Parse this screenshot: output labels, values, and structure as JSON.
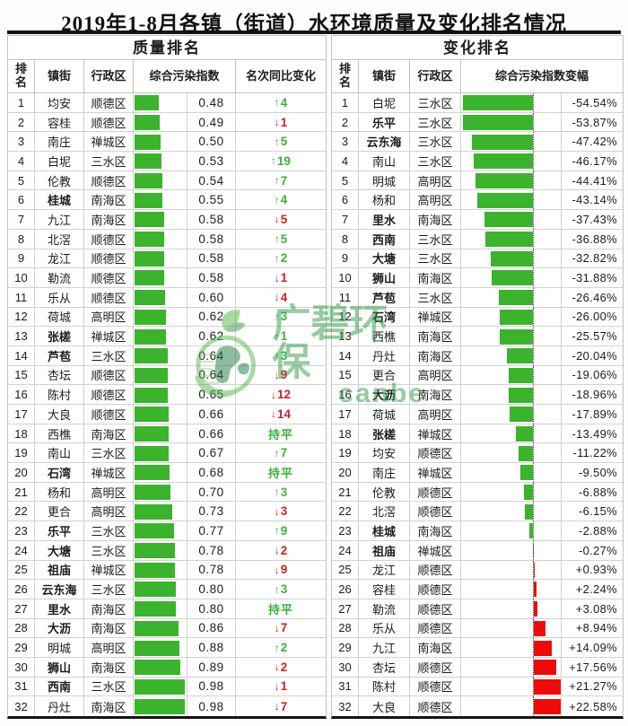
{
  "title": "2019年1-8月各镇（街道）水环境质量及变化排名情况",
  "watermark": {
    "brand": "广碧环保",
    "brand_en": "canbe"
  },
  "colors": {
    "bar_green": "#3cb32c",
    "bar_red": "#ed0b0b",
    "text_green": "#3faf3f",
    "text_red": "#cc2222"
  },
  "left_table": {
    "section_title": "质量排名",
    "columns": [
      "排名",
      "镇街",
      "行政区",
      "综合污染指数",
      "名次同比变化"
    ],
    "rows": [
      {
        "rank": "1",
        "town": "均安",
        "district": "顺德区",
        "bold": false,
        "index": "0.48",
        "change": {
          "dir": "up",
          "n": "4"
        }
      },
      {
        "rank": "2",
        "town": "容桂",
        "district": "顺德区",
        "bold": false,
        "index": "0.49",
        "change": {
          "dir": "down",
          "n": "1"
        }
      },
      {
        "rank": "3",
        "town": "南庄",
        "district": "禅城区",
        "bold": false,
        "index": "0.50",
        "change": {
          "dir": "up",
          "n": "5"
        }
      },
      {
        "rank": "4",
        "town": "白坭",
        "district": "三水区",
        "bold": false,
        "index": "0.53",
        "change": {
          "dir": "up",
          "n": "19"
        }
      },
      {
        "rank": "5",
        "town": "伦教",
        "district": "顺德区",
        "bold": false,
        "index": "0.54",
        "change": {
          "dir": "up",
          "n": "7"
        }
      },
      {
        "rank": "6",
        "town": "桂城",
        "district": "南海区",
        "bold": true,
        "index": "0.55",
        "change": {
          "dir": "up",
          "n": "4"
        }
      },
      {
        "rank": "7",
        "town": "九江",
        "district": "南海区",
        "bold": false,
        "index": "0.58",
        "change": {
          "dir": "down",
          "n": "5"
        }
      },
      {
        "rank": "8",
        "town": "北滘",
        "district": "顺德区",
        "bold": false,
        "index": "0.58",
        "change": {
          "dir": "up",
          "n": "5"
        }
      },
      {
        "rank": "9",
        "town": "龙江",
        "district": "顺德区",
        "bold": false,
        "index": "0.58",
        "change": {
          "dir": "up",
          "n": "2"
        }
      },
      {
        "rank": "10",
        "town": "勒流",
        "district": "顺德区",
        "bold": false,
        "index": "0.58",
        "change": {
          "dir": "down",
          "n": "1"
        }
      },
      {
        "rank": "11",
        "town": "乐从",
        "district": "顺德区",
        "bold": false,
        "index": "0.60",
        "change": {
          "dir": "down",
          "n": "4"
        }
      },
      {
        "rank": "12",
        "town": "荷城",
        "district": "高明区",
        "bold": false,
        "index": "0.62",
        "change": {
          "dir": "up",
          "n": "3"
        }
      },
      {
        "rank": "13",
        "town": "张槎",
        "district": "禅城区",
        "bold": true,
        "index": "0.62",
        "change": {
          "dir": "up",
          "n": "1"
        }
      },
      {
        "rank": "14",
        "town": "芦苞",
        "district": "三水区",
        "bold": true,
        "index": "0.64",
        "change": {
          "dir": "up",
          "n": "3"
        }
      },
      {
        "rank": "15",
        "town": "杏坛",
        "district": "顺德区",
        "bold": false,
        "index": "0.64",
        "change": {
          "dir": "down",
          "n": "9"
        }
      },
      {
        "rank": "16",
        "town": "陈村",
        "district": "顺德区",
        "bold": false,
        "index": "0.65",
        "change": {
          "dir": "down",
          "n": "12"
        }
      },
      {
        "rank": "17",
        "town": "大良",
        "district": "顺德区",
        "bold": false,
        "index": "0.66",
        "change": {
          "dir": "down",
          "n": "14"
        }
      },
      {
        "rank": "18",
        "town": "西樵",
        "district": "南海区",
        "bold": false,
        "index": "0.66",
        "change": {
          "dir": "flat",
          "n": "持平"
        }
      },
      {
        "rank": "19",
        "town": "南山",
        "district": "三水区",
        "bold": false,
        "index": "0.67",
        "change": {
          "dir": "up",
          "n": "7"
        }
      },
      {
        "rank": "20",
        "town": "石湾",
        "district": "禅城区",
        "bold": true,
        "index": "0.68",
        "change": {
          "dir": "flat",
          "n": "持平"
        }
      },
      {
        "rank": "21",
        "town": "杨和",
        "district": "高明区",
        "bold": false,
        "index": "0.70",
        "change": {
          "dir": "up",
          "n": "3"
        }
      },
      {
        "rank": "22",
        "town": "更合",
        "district": "高明区",
        "bold": false,
        "index": "0.73",
        "change": {
          "dir": "down",
          "n": "3"
        }
      },
      {
        "rank": "23",
        "town": "乐平",
        "district": "三水区",
        "bold": true,
        "index": "0.77",
        "change": {
          "dir": "up",
          "n": "9"
        }
      },
      {
        "rank": "24",
        "town": "大塘",
        "district": "三水区",
        "bold": true,
        "index": "0.78",
        "change": {
          "dir": "down",
          "n": "2"
        }
      },
      {
        "rank": "25",
        "town": "祖庙",
        "district": "禅城区",
        "bold": true,
        "index": "0.78",
        "change": {
          "dir": "down",
          "n": "9"
        }
      },
      {
        "rank": "26",
        "town": "云东海",
        "district": "三水区",
        "bold": true,
        "index": "0.80",
        "change": {
          "dir": "up",
          "n": "3"
        }
      },
      {
        "rank": "27",
        "town": "里水",
        "district": "南海区",
        "bold": true,
        "index": "0.80",
        "change": {
          "dir": "flat",
          "n": "持平"
        }
      },
      {
        "rank": "28",
        "town": "大沥",
        "district": "南海区",
        "bold": true,
        "index": "0.86",
        "change": {
          "dir": "down",
          "n": "7"
        }
      },
      {
        "rank": "29",
        "town": "明城",
        "district": "高明区",
        "bold": false,
        "index": "0.88",
        "change": {
          "dir": "up",
          "n": "2"
        }
      },
      {
        "rank": "30",
        "town": "狮山",
        "district": "南海区",
        "bold": true,
        "index": "0.89",
        "change": {
          "dir": "down",
          "n": "2"
        }
      },
      {
        "rank": "31",
        "town": "西南",
        "district": "三水区",
        "bold": true,
        "index": "0.98",
        "change": {
          "dir": "down",
          "n": "1"
        }
      },
      {
        "rank": "32",
        "town": "丹灶",
        "district": "南海区",
        "bold": false,
        "index": "0.98",
        "change": {
          "dir": "down",
          "n": "7"
        }
      }
    ]
  },
  "right_table": {
    "section_title": "变化排名",
    "columns": [
      "排名",
      "镇街",
      "行政区",
      "综合污染指数变幅"
    ],
    "rows": [
      {
        "rank": "1",
        "town": "白坭",
        "district": "三水区",
        "bold": false,
        "pct": -54.54,
        "display": "-54.54%"
      },
      {
        "rank": "2",
        "town": "乐平",
        "district": "三水区",
        "bold": true,
        "pct": -53.87,
        "display": "-53.87%"
      },
      {
        "rank": "3",
        "town": "云东海",
        "district": "三水区",
        "bold": true,
        "pct": -47.42,
        "display": "-47.42%"
      },
      {
        "rank": "4",
        "town": "南山",
        "district": "三水区",
        "bold": false,
        "pct": -46.17,
        "display": "-46.17%"
      },
      {
        "rank": "5",
        "town": "明城",
        "district": "高明区",
        "bold": false,
        "pct": -44.41,
        "display": "-44.41%"
      },
      {
        "rank": "6",
        "town": "杨和",
        "district": "高明区",
        "bold": false,
        "pct": -43.14,
        "display": "-43.14%"
      },
      {
        "rank": "7",
        "town": "里水",
        "district": "南海区",
        "bold": true,
        "pct": -37.43,
        "display": "-37.43%"
      },
      {
        "rank": "8",
        "town": "西南",
        "district": "三水区",
        "bold": true,
        "pct": -36.88,
        "display": "-36.88%"
      },
      {
        "rank": "9",
        "town": "大塘",
        "district": "三水区",
        "bold": true,
        "pct": -32.82,
        "display": "-32.82%"
      },
      {
        "rank": "10",
        "town": "狮山",
        "district": "南海区",
        "bold": true,
        "pct": -31.88,
        "display": "-31.88%"
      },
      {
        "rank": "11",
        "town": "芦苞",
        "district": "三水区",
        "bold": true,
        "pct": -26.46,
        "display": "-26.46%"
      },
      {
        "rank": "12",
        "town": "石湾",
        "district": "禅城区",
        "bold": true,
        "pct": -26.0,
        "display": "-26.00%"
      },
      {
        "rank": "13",
        "town": "西樵",
        "district": "南海区",
        "bold": false,
        "pct": -25.57,
        "display": "-25.57%"
      },
      {
        "rank": "14",
        "town": "丹灶",
        "district": "南海区",
        "bold": false,
        "pct": -20.04,
        "display": "-20.04%"
      },
      {
        "rank": "15",
        "town": "更合",
        "district": "高明区",
        "bold": false,
        "pct": -19.06,
        "display": "-19.06%"
      },
      {
        "rank": "16",
        "town": "大沥",
        "district": "南海区",
        "bold": true,
        "pct": -18.96,
        "display": "-18.96%"
      },
      {
        "rank": "17",
        "town": "荷城",
        "district": "高明区",
        "bold": false,
        "pct": -17.89,
        "display": "-17.89%"
      },
      {
        "rank": "18",
        "town": "张槎",
        "district": "禅城区",
        "bold": true,
        "pct": -13.49,
        "display": "-13.49%"
      },
      {
        "rank": "19",
        "town": "均安",
        "district": "顺德区",
        "bold": false,
        "pct": -11.22,
        "display": "-11.22%"
      },
      {
        "rank": "20",
        "town": "南庄",
        "district": "禅城区",
        "bold": false,
        "pct": -9.5,
        "display": "-9.50%"
      },
      {
        "rank": "21",
        "town": "伦教",
        "district": "顺德区",
        "bold": false,
        "pct": -6.88,
        "display": "-6.88%"
      },
      {
        "rank": "22",
        "town": "北滘",
        "district": "顺德区",
        "bold": false,
        "pct": -6.15,
        "display": "-6.15%"
      },
      {
        "rank": "23",
        "town": "桂城",
        "district": "南海区",
        "bold": true,
        "pct": -2.88,
        "display": "-2.88%"
      },
      {
        "rank": "24",
        "town": "祖庙",
        "district": "禅城区",
        "bold": true,
        "pct": -0.27,
        "display": "-0.27%"
      },
      {
        "rank": "25",
        "town": "龙江",
        "district": "顺德区",
        "bold": false,
        "pct": 0.93,
        "display": "+0.93%"
      },
      {
        "rank": "26",
        "town": "容桂",
        "district": "顺德区",
        "bold": false,
        "pct": 2.24,
        "display": "+2.24%"
      },
      {
        "rank": "27",
        "town": "勒流",
        "district": "顺德区",
        "bold": false,
        "pct": 3.08,
        "display": "+3.08%"
      },
      {
        "rank": "28",
        "town": "乐从",
        "district": "顺德区",
        "bold": false,
        "pct": 8.94,
        "display": "+8.94%"
      },
      {
        "rank": "29",
        "town": "九江",
        "district": "南海区",
        "bold": false,
        "pct": 14.09,
        "display": "+14.09%"
      },
      {
        "rank": "30",
        "town": "杏坛",
        "district": "顺德区",
        "bold": false,
        "pct": 17.56,
        "display": "+17.56%"
      },
      {
        "rank": "31",
        "town": "陈村",
        "district": "顺德区",
        "bold": false,
        "pct": 21.27,
        "display": "+21.27%"
      },
      {
        "rank": "32",
        "town": "大良",
        "district": "顺德区",
        "bold": false,
        "pct": 22.58,
        "display": "+22.58%"
      }
    ]
  },
  "chart_data": [
    {
      "type": "bar",
      "title": "质量排名 — 综合污染指数",
      "categories": [
        "均安",
        "容桂",
        "南庄",
        "白坭",
        "伦教",
        "桂城",
        "九江",
        "北滘",
        "龙江",
        "勒流",
        "乐从",
        "荷城",
        "张槎",
        "芦苞",
        "杏坛",
        "陈村",
        "大良",
        "西樵",
        "南山",
        "石湾",
        "杨和",
        "更合",
        "乐平",
        "大塘",
        "祖庙",
        "云东海",
        "里水",
        "大沥",
        "明城",
        "狮山",
        "西南",
        "丹灶"
      ],
      "values": [
        0.48,
        0.49,
        0.5,
        0.53,
        0.54,
        0.55,
        0.58,
        0.58,
        0.58,
        0.58,
        0.6,
        0.62,
        0.62,
        0.64,
        0.64,
        0.65,
        0.66,
        0.66,
        0.67,
        0.68,
        0.7,
        0.73,
        0.77,
        0.78,
        0.78,
        0.8,
        0.8,
        0.86,
        0.88,
        0.89,
        0.98,
        0.98
      ],
      "annotations": [
        "↑4",
        "↓1",
        "↑5",
        "↑19",
        "↑7",
        "↑4",
        "↓5",
        "↑5",
        "↑2",
        "↓1",
        "↓4",
        "↑3",
        "↑1",
        "↑3",
        "↓9",
        "↓12",
        "↓14",
        "持平",
        "↑7",
        "持平",
        "↑3",
        "↓3",
        "↑9",
        "↓2",
        "↓9",
        "↑3",
        "持平",
        "↓7",
        "↑2",
        "↓2",
        "↓1",
        "↓7"
      ],
      "xlabel": "",
      "ylabel": "综合污染指数",
      "xlim": [
        0,
        1.0
      ],
      "grid": false,
      "legend": "none"
    },
    {
      "type": "bar",
      "title": "变化排名 — 综合污染指数变幅(%)",
      "categories": [
        "白坭",
        "乐平",
        "云东海",
        "南山",
        "明城",
        "杨和",
        "里水",
        "西南",
        "大塘",
        "狮山",
        "芦苞",
        "石湾",
        "西樵",
        "丹灶",
        "更合",
        "大沥",
        "荷城",
        "张槎",
        "均安",
        "南庄",
        "伦教",
        "北滘",
        "桂城",
        "祖庙",
        "龙江",
        "容桂",
        "勒流",
        "乐从",
        "九江",
        "杏坛",
        "陈村",
        "大良"
      ],
      "values": [
        -54.54,
        -53.87,
        -47.42,
        -46.17,
        -44.41,
        -43.14,
        -37.43,
        -36.88,
        -32.82,
        -31.88,
        -26.46,
        -26.0,
        -25.57,
        -20.04,
        -19.06,
        -18.96,
        -17.89,
        -13.49,
        -11.22,
        -9.5,
        -6.88,
        -6.15,
        -2.88,
        -0.27,
        0.93,
        2.24,
        3.08,
        8.94,
        14.09,
        17.56,
        21.27,
        22.58
      ],
      "xlabel": "",
      "ylabel": "综合污染指数变幅",
      "xlim": [
        -56,
        23
      ],
      "grid": false,
      "legend": "none"
    }
  ]
}
